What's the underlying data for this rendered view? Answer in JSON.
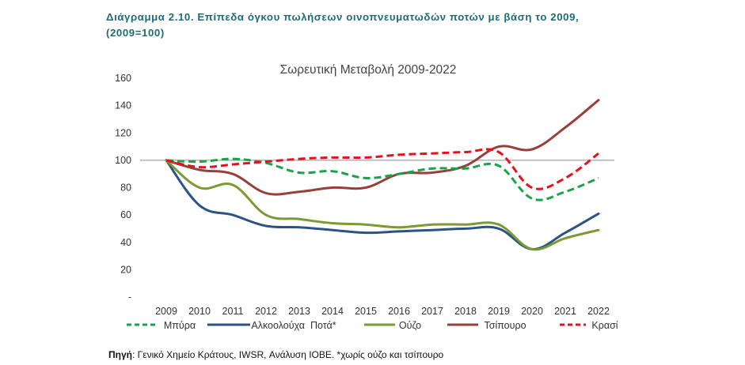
{
  "caption": {
    "line1": "Διάγραμμα 2.10. Επίπεδα όγκου πωλήσεων οινοπνευματωδών ποτών με βάση το 2009,",
    "line2": "(2009=100)"
  },
  "source": {
    "label": "Πηγή",
    "text": ": Γενικό Χημείο Κράτους, IWSR, Ανάλυση ΙΟΒΕ. *χωρίς ούζο και τσίπουρο"
  },
  "chart_data": {
    "type": "line",
    "title": "Σωρευτική Μεταβολή 2009-2022",
    "xlabel": "",
    "ylabel": "",
    "x": [
      "2009",
      "2010",
      "2011",
      "2012",
      "2013",
      "2014",
      "2015",
      "2016",
      "2017",
      "2018",
      "2019",
      "2020",
      "2021",
      "2022"
    ],
    "ylim": [
      0,
      160
    ],
    "yticks": [
      0,
      20,
      40,
      60,
      80,
      100,
      120,
      140,
      160
    ],
    "ytick_labels": [
      "-",
      "20",
      "40",
      "60",
      "80",
      "100",
      "120",
      "140",
      "160"
    ],
    "reference_line": 100,
    "grid": false,
    "legend_position": "bottom",
    "series": [
      {
        "name": "Μπύρα",
        "color": "#1aa34a",
        "dash": "dashed",
        "values": [
          100,
          99,
          101,
          98,
          91,
          92,
          87,
          90,
          94,
          94,
          96,
          72,
          77,
          87
        ]
      },
      {
        "name": "Αλκοολούχα  Ποτά*",
        "color": "#2c5483",
        "dash": "solid",
        "values": [
          100,
          67,
          60,
          52,
          51,
          49,
          47,
          48,
          49,
          50,
          50,
          35,
          47,
          61
        ]
      },
      {
        "name": "Ούζο",
        "color": "#7b9a33",
        "dash": "solid",
        "values": [
          100,
          80,
          82,
          60,
          57,
          54,
          53,
          51,
          53,
          53,
          53,
          35,
          43,
          49
        ]
      },
      {
        "name": "Τσίπουρο",
        "color": "#973f3a",
        "dash": "solid",
        "values": [
          100,
          93,
          90,
          76,
          77,
          80,
          80,
          90,
          91,
          96,
          110,
          108,
          124,
          144
        ]
      },
      {
        "name": "Κρασί",
        "color": "#e8101c",
        "dash": "dashed",
        "values": [
          100,
          95,
          97,
          99,
          101,
          102,
          102,
          104,
          105,
          106,
          106,
          80,
          87,
          105
        ]
      }
    ]
  }
}
